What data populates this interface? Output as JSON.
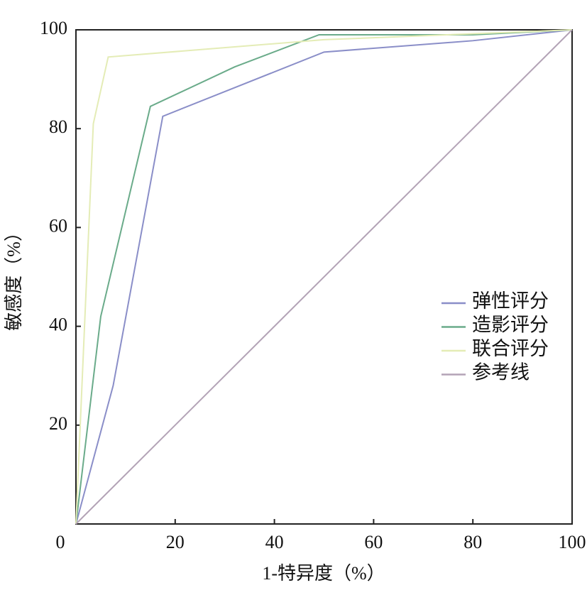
{
  "chart_data": {
    "type": "line",
    "x_label": "1-特异度（%）",
    "y_label": "敏感度（%）",
    "xlim": [
      0,
      100
    ],
    "ylim": [
      0,
      100
    ],
    "xticks": [
      0,
      20,
      40,
      60,
      80,
      100
    ],
    "yticks": [
      20,
      40,
      60,
      80,
      100
    ],
    "legend": "right",
    "series": [
      {
        "name": "弹性评分",
        "color": "#8a8ec8",
        "x": [
          0,
          7.5,
          17.5,
          50,
          80,
          100
        ],
        "values": [
          0,
          28,
          82.5,
          95.5,
          97.8,
          100
        ]
      },
      {
        "name": "造影评分",
        "color": "#6aab8a",
        "x": [
          0,
          5,
          15,
          32,
          49,
          80,
          100
        ],
        "values": [
          0,
          42,
          84.5,
          92.5,
          99,
          99,
          100
        ]
      },
      {
        "name": "联合评分",
        "color": "#e4ecb6",
        "x": [
          0,
          3.5,
          6.5,
          50,
          100
        ],
        "values": [
          0,
          81,
          94.5,
          98,
          100
        ]
      },
      {
        "name": "参考线",
        "color": "#b3a3b6",
        "x": [
          0,
          100
        ],
        "values": [
          0,
          100
        ]
      }
    ]
  }
}
